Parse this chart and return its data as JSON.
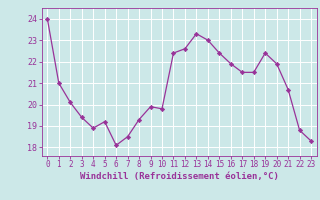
{
  "x": [
    0,
    1,
    2,
    3,
    4,
    5,
    6,
    7,
    8,
    9,
    10,
    11,
    12,
    13,
    14,
    15,
    16,
    17,
    18,
    19,
    20,
    21,
    22,
    23
  ],
  "y": [
    24.0,
    21.0,
    20.1,
    19.4,
    18.9,
    19.2,
    18.1,
    18.5,
    19.3,
    19.9,
    19.8,
    22.4,
    22.6,
    23.3,
    23.0,
    22.4,
    21.9,
    21.5,
    21.5,
    22.4,
    21.9,
    20.7,
    18.8,
    18.3
  ],
  "line_color": "#993399",
  "marker_color": "#993399",
  "bg_color": "#cce8e8",
  "grid_color": "#ffffff",
  "xlabel": "Windchill (Refroidissement éolien,°C)",
  "xlabel_color": "#993399",
  "tick_color": "#993399",
  "ylabel_ticks": [
    18,
    19,
    20,
    21,
    22,
    23,
    24
  ],
  "ylim": [
    17.6,
    24.5
  ],
  "xlim": [
    -0.5,
    23.5
  ],
  "spine_color": "#993399"
}
